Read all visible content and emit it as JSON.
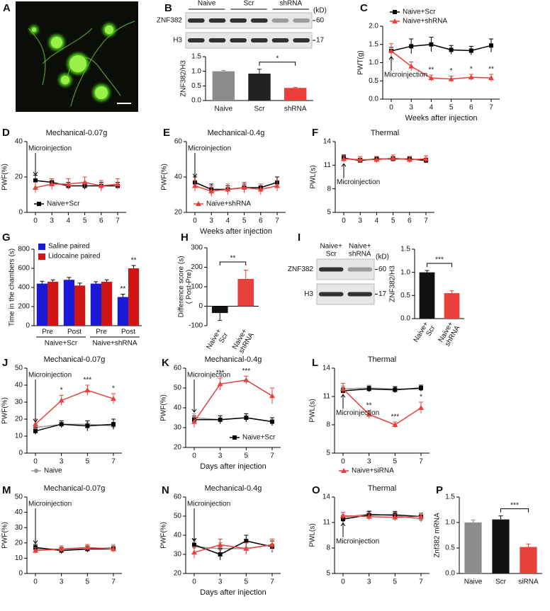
{
  "chart_data": [
    {
      "panel": "A",
      "type": "image"
    },
    {
      "panel": "B",
      "type": "bar",
      "ylabel": "ZNF382/H3",
      "categories": [
        "Naive",
        "Scr",
        "shRNA"
      ],
      "values": [
        1.0,
        0.92,
        0.43
      ],
      "errors": [
        0.03,
        0.15,
        0.02
      ],
      "colors": [
        "#8c8c8c",
        "#222222",
        "#e8403a"
      ],
      "ylim": [
        0,
        1.5
      ],
      "yticks": [
        {
          "value": 0,
          "label": "0.0"
        },
        0.5,
        {
          "value": 1,
          "label": "1.0"
        },
        1.5
      ],
      "bracket": {
        "from": 1,
        "to": 2,
        "label": "*"
      },
      "blot": {
        "groups": [
          "Naive",
          "Scr",
          "shRNA"
        ],
        "proteins": [
          "ZNF382",
          "H3"
        ],
        "unit": "(kD)",
        "markers": [
          60,
          17
        ]
      }
    },
    {
      "panel": "C",
      "type": "line",
      "ylabel": "PWT(g)",
      "xlabel": "Weeks after injection",
      "categories": [
        "0",
        "3",
        "4",
        "5",
        "6",
        "7"
      ],
      "annotation": "Microinjection",
      "legend": "top",
      "ylim": [
        0,
        2
      ],
      "yticks": [
        {
          "value": 0,
          "label": "0.0"
        },
        0.5,
        {
          "value": 1,
          "label": "1.0"
        },
        1.5,
        {
          "value": 2,
          "label": "2.0"
        }
      ],
      "series": [
        {
          "name": "Naive+Scr",
          "color": "#000000",
          "marker": "square",
          "values": [
            1.32,
            1.45,
            1.5,
            1.35,
            1.33,
            1.47
          ],
          "errors": [
            0.1,
            0.2,
            0.2,
            0.12,
            0.12,
            0.18
          ]
        },
        {
          "name": "Naive+shRNA",
          "color": "#e8403a",
          "marker": "triangle",
          "values": [
            1.32,
            0.9,
            0.58,
            0.55,
            0.6,
            0.58
          ],
          "errors": [
            0.2,
            0.12,
            0.08,
            0.08,
            0.08,
            0.1
          ],
          "significance": [
            null,
            null,
            "**",
            "*",
            "*",
            "**"
          ]
        }
      ]
    },
    {
      "panel": "D",
      "type": "line",
      "title": "Mechanical-0.07g",
      "ylabel": "PWF(%)",
      "categories": [
        "0",
        "3",
        "4",
        "5",
        "6",
        "7"
      ],
      "annotation": "Microinjection",
      "legend": "bottom-left",
      "ylim": [
        0,
        40
      ],
      "yticks": [
        0,
        20,
        40
      ],
      "series": [
        {
          "name": "Naive+Scr",
          "color": "#000000",
          "marker": "square",
          "values": [
            18,
            17,
            15,
            15,
            15,
            15
          ],
          "errors": [
            3,
            2,
            2,
            2,
            2,
            2
          ]
        },
        {
          "color": "#e8403a",
          "marker": "triangle",
          "values": [
            14,
            16,
            16,
            17,
            15,
            16
          ],
          "errors": [
            3,
            3,
            3,
            3,
            3,
            3
          ]
        }
      ]
    },
    {
      "panel": "E",
      "type": "line",
      "title": "Mechanical-0.4g",
      "ylabel": "PWF(%)",
      "xlabel": "Weeks after injection",
      "categories": [
        "0",
        "3",
        "4",
        "5",
        "6",
        "7"
      ],
      "annotation": "Microinjection",
      "legend": "bottom-left",
      "ylim": [
        20,
        60
      ],
      "yticks": [
        20,
        40,
        60
      ],
      "series": [
        {
          "color": "#000000",
          "marker": "square",
          "values": [
            37,
            33,
            33,
            34,
            34,
            37
          ],
          "errors": [
            3,
            3,
            2,
            2,
            2,
            3
          ]
        },
        {
          "name": "Naive+shRNA",
          "color": "#e8403a",
          "marker": "triangle",
          "values": [
            35,
            32,
            33,
            34,
            33,
            35
          ],
          "errors": [
            3,
            3,
            3,
            3,
            3,
            3
          ]
        }
      ]
    },
    {
      "panel": "F",
      "type": "line",
      "title": "Thermal",
      "ylabel": "PWL(s)",
      "categories": [
        "0",
        "3",
        "4",
        "5",
        "6",
        "7"
      ],
      "annotation": "Microinjection",
      "ylim": [
        5,
        14
      ],
      "yticks": [
        5,
        8,
        11,
        14
      ],
      "series": [
        {
          "color": "#000000",
          "marker": "square",
          "values": [
            11.9,
            11.6,
            11.8,
            11.8,
            11.8,
            11.6
          ],
          "errors": [
            0.4,
            0.3,
            0.3,
            0.3,
            0.3,
            0.3
          ]
        },
        {
          "color": "#e8403a",
          "marker": "triangle",
          "values": [
            11.8,
            11.7,
            11.7,
            11.9,
            11.7,
            11.8
          ],
          "errors": [
            0.4,
            0.4,
            0.4,
            0.4,
            0.4,
            0.4
          ]
        }
      ]
    },
    {
      "panel": "G",
      "type": "grouped_bar",
      "ylabel": "Time in the chambers (s)",
      "categories": [
        "Pre",
        "Post",
        "Pre",
        "Post"
      ],
      "groups": [
        "Naive+Scr",
        "Naive+shRNA"
      ],
      "legend": "top-left",
      "ylim": [
        0,
        800
      ],
      "yticks": [
        0,
        200,
        400,
        600,
        800
      ],
      "series": [
        {
          "name": "Saline paired",
          "color": "#1a1ad6",
          "values": [
            440,
            480,
            440,
            300
          ],
          "errors": [
            25,
            25,
            20,
            30
          ],
          "significance": [
            null,
            null,
            null,
            "**"
          ]
        },
        {
          "name": "Lidocaine paired",
          "color": "#d01515",
          "values": [
            460,
            420,
            460,
            600
          ],
          "errors": [
            20,
            25,
            20,
            30
          ],
          "significance": [
            null,
            null,
            null,
            "**"
          ]
        }
      ]
    },
    {
      "panel": "H",
      "type": "bar",
      "ylabel": "Difference score (s)\n( Post-Pre)",
      "categories": [
        "Naive+\nScr",
        "Naive+\nshRNA"
      ],
      "values": [
        -35,
        140
      ],
      "errors": [
        38,
        45
      ],
      "colors": [
        "#111111",
        "#e8403a"
      ],
      "ylim": [
        -100,
        300
      ],
      "yticks": [
        -100,
        0,
        100,
        200,
        300
      ],
      "bracket": {
        "from": 0,
        "to": 1,
        "label": "**"
      },
      "rotate_labels": true
    },
    {
      "panel": "I",
      "type": "bar",
      "ylabel": "ZNF382/H3",
      "categories": [
        "Naive+\nScr",
        "Naive+\nshRNA"
      ],
      "values": [
        1.0,
        0.55
      ],
      "errors": [
        0.04,
        0.05
      ],
      "colors": [
        "#111111",
        "#e8403a"
      ],
      "ylim": [
        0,
        1.5
      ],
      "yticks": [
        {
          "value": 0,
          "label": "0.0"
        },
        0.5,
        {
          "value": 1,
          "label": "1.0"
        },
        1.5
      ],
      "bracket": {
        "from": 0,
        "to": 1,
        "label": "***"
      },
      "rotate_labels": true,
      "blot": {
        "groups": [
          "Naive+\nScr",
          "Naive+\nshRNA"
        ],
        "proteins": [
          "ZNF382",
          "H3"
        ],
        "unit": "(kD)",
        "markers": [
          60,
          17
        ]
      }
    },
    {
      "panel": "J",
      "type": "line",
      "title": "Mechanical-0.07g",
      "ylabel": "PWF(%)",
      "categories": [
        "0",
        "3",
        "5",
        "7"
      ],
      "annotation": "Microinjection",
      "legend": "below",
      "ylim": [
        0,
        50
      ],
      "yticks": [
        0,
        10,
        20,
        30,
        40,
        50
      ],
      "series": [
        {
          "name": "Naive",
          "color": "#999999",
          "marker": "circle",
          "values": [
            15,
            17,
            17,
            16
          ],
          "errors": [
            2,
            2,
            2,
            2
          ]
        },
        {
          "color": "#000000",
          "marker": "square",
          "values": [
            13,
            17,
            16,
            17
          ],
          "errors": [
            2,
            2,
            3,
            3
          ]
        },
        {
          "color": "#e8403a",
          "marker": "triangle",
          "values": [
            17,
            31,
            37,
            32
          ],
          "errors": [
            3,
            3,
            3,
            3
          ],
          "significance": [
            null,
            "*",
            "***",
            "*"
          ]
        }
      ]
    },
    {
      "panel": "K",
      "type": "line",
      "title": "Mechanical-0.4g",
      "ylabel": "PWF(%)",
      "xlabel": "Days after injection",
      "categories": [
        "0",
        "3",
        "5",
        "7"
      ],
      "annotation": "Microinjection",
      "legend": "bottom-right",
      "ylim": [
        20,
        60
      ],
      "yticks": [
        20,
        30,
        40,
        50,
        60
      ],
      "series": [
        {
          "color": "#999999",
          "marker": "circle",
          "values": [
            35,
            34,
            35,
            33
          ],
          "errors": [
            2,
            2,
            2,
            2
          ]
        },
        {
          "name": "Naive+Scr",
          "color": "#000000",
          "marker": "square",
          "values": [
            34,
            34,
            35,
            33
          ],
          "errors": [
            2,
            2,
            2,
            2
          ]
        },
        {
          "color": "#e8403a",
          "marker": "triangle",
          "values": [
            33,
            52,
            54,
            46
          ],
          "errors": [
            3,
            3,
            2,
            4
          ],
          "significance": [
            null,
            "***",
            "***",
            null
          ]
        }
      ]
    },
    {
      "panel": "L",
      "type": "line",
      "title": "Thermal",
      "ylabel": "PWL(s)",
      "categories": [
        "0",
        "3",
        "5",
        "7"
      ],
      "annotation": "Microinjection",
      "legend": "below",
      "ylim": [
        5,
        14
      ],
      "yticks": [
        5,
        8,
        11,
        14
      ],
      "series": [
        {
          "color": "#999999",
          "marker": "circle",
          "values": [
            11.8,
            11.9,
            11.8,
            11.8
          ],
          "errors": [
            0.3,
            0.3,
            0.3,
            0.3
          ]
        },
        {
          "color": "#000000",
          "marker": "square",
          "values": [
            11.6,
            11.8,
            11.7,
            11.9
          ],
          "errors": [
            0.3,
            0.3,
            0.3,
            0.3
          ]
        },
        {
          "name": "Naive+siRNA",
          "color": "#e8403a",
          "marker": "triangle",
          "values": [
            11.8,
            9.1,
            8.0,
            9.8
          ],
          "errors": [
            0.6,
            0.4,
            0.3,
            0.6
          ],
          "significance": [
            null,
            "**",
            "***",
            "*"
          ]
        }
      ]
    },
    {
      "panel": "M",
      "type": "line",
      "title": "Mechanical-0.07g",
      "ylabel": "PWF(%)",
      "categories": [
        "0",
        "3",
        "5",
        "7"
      ],
      "annotation": "Microinjection",
      "ylim": [
        0,
        50
      ],
      "yticks": [
        0,
        10,
        20,
        30,
        40,
        50
      ],
      "series": [
        {
          "color": "#999999",
          "marker": "circle",
          "values": [
            16,
            16,
            16,
            17
          ],
          "errors": [
            2,
            2,
            2,
            2
          ]
        },
        {
          "color": "#000000",
          "marker": "square",
          "values": [
            17,
            15,
            16,
            16
          ],
          "errors": [
            2,
            2,
            2,
            2
          ]
        },
        {
          "color": "#e8403a",
          "marker": "triangle",
          "values": [
            15,
            16,
            17,
            16
          ],
          "errors": [
            2,
            2,
            2,
            2
          ]
        }
      ]
    },
    {
      "panel": "N",
      "type": "line",
      "title": "Mechanical-0.4g",
      "ylabel": "PWF(%)",
      "xlabel": "Days after injection",
      "categories": [
        "0",
        "3",
        "5",
        "7"
      ],
      "annotation": "Microinjection",
      "ylim": [
        20,
        60
      ],
      "yticks": [
        20,
        30,
        40,
        50,
        60
      ],
      "series": [
        {
          "color": "#999999",
          "marker": "circle",
          "values": [
            34,
            33,
            33,
            35
          ],
          "errors": [
            3,
            3,
            3,
            3
          ]
        },
        {
          "color": "#000000",
          "marker": "square",
          "values": [
            35,
            30,
            37,
            34
          ],
          "errors": [
            3,
            3,
            3,
            3
          ]
        },
        {
          "color": "#e8403a",
          "marker": "triangle",
          "values": [
            31,
            35,
            33,
            35
          ],
          "errors": [
            3,
            3,
            3,
            3
          ]
        }
      ]
    },
    {
      "panel": "O",
      "type": "line",
      "title": "Thermal",
      "ylabel": "PWL(s)",
      "categories": [
        "0",
        "3",
        "5",
        "7"
      ],
      "annotation": "Microinjection",
      "ylim": [
        5,
        14
      ],
      "yticks": [
        5,
        8,
        11,
        14
      ],
      "series": [
        {
          "color": "#999999",
          "marker": "circle",
          "values": [
            11.6,
            12.0,
            11.8,
            11.4
          ],
          "errors": [
            0.4,
            0.4,
            0.4,
            0.4
          ]
        },
        {
          "color": "#000000",
          "marker": "square",
          "values": [
            11.4,
            11.9,
            11.9,
            11.7
          ],
          "errors": [
            0.4,
            0.4,
            0.4,
            0.4
          ]
        },
        {
          "color": "#e8403a",
          "marker": "triangle",
          "values": [
            11.8,
            11.7,
            11.6,
            11.7
          ],
          "errors": [
            0.4,
            0.4,
            0.4,
            0.4
          ]
        }
      ]
    },
    {
      "panel": "P",
      "type": "bar",
      "ylabel": "Znf382 mRNA",
      "categories": [
        "Naive",
        "Scr",
        "siRNA"
      ],
      "values": [
        1.0,
        1.06,
        0.52
      ],
      "errors": [
        0.05,
        0.07,
        0.06
      ],
      "colors": [
        "#8c8c8c",
        "#111111",
        "#e8403a"
      ],
      "ylim": [
        0,
        1.5
      ],
      "yticks": [
        {
          "value": 0,
          "label": "0.0"
        },
        0.5,
        {
          "value": 1,
          "label": "1.0"
        },
        1.5
      ],
      "bracket": {
        "from": 1,
        "to": 2,
        "label": "***"
      }
    }
  ]
}
